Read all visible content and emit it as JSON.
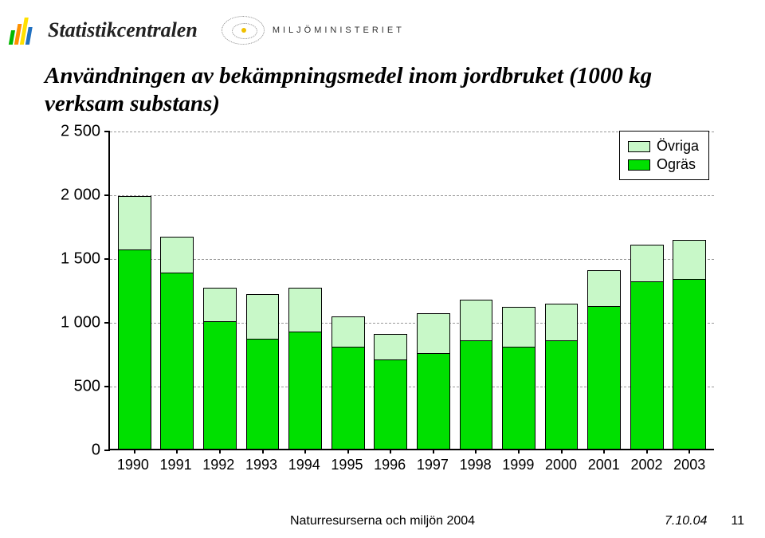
{
  "header": {
    "logo1_text": "Statistikcentralen",
    "logo2_text": "MILJÖMINISTERIET"
  },
  "title": "Användningen av bekämpningsmedel inom jordbruket (1000 kg verksam substans)",
  "chart": {
    "type": "stacked-bar",
    "categories": [
      "1990",
      "1991",
      "1992",
      "1993",
      "1994",
      "1995",
      "1996",
      "1997",
      "1998",
      "1999",
      "2000",
      "2001",
      "2002",
      "2003"
    ],
    "series": [
      {
        "name": "Ogräs",
        "color": "#00e000",
        "values": [
          1560,
          1380,
          1000,
          860,
          920,
          800,
          700,
          750,
          850,
          800,
          850,
          1120,
          1310,
          1330
        ]
      },
      {
        "name": "Övriga",
        "color": "#c8f8c8",
        "values": [
          420,
          280,
          260,
          350,
          340,
          240,
          200,
          310,
          320,
          310,
          290,
          280,
          290,
          310
        ]
      }
    ],
    "y": {
      "min": 0,
      "max": 2500,
      "step": 500,
      "ticks": [
        "0",
        "500",
        "1 000",
        "1 500",
        "2 000",
        "2 500"
      ]
    },
    "axis_color": "#000000",
    "grid_color": "#999999",
    "background_color": "#ffffff",
    "bar_border_color": "#000000",
    "bar_width_ratio": 0.78,
    "label_fontsize": 20,
    "xlabel_fontsize": 18,
    "legend_fontsize": 18
  },
  "footer": {
    "center": "Naturresurserna och miljön 2004",
    "date": "7.10.04",
    "page": "11"
  }
}
